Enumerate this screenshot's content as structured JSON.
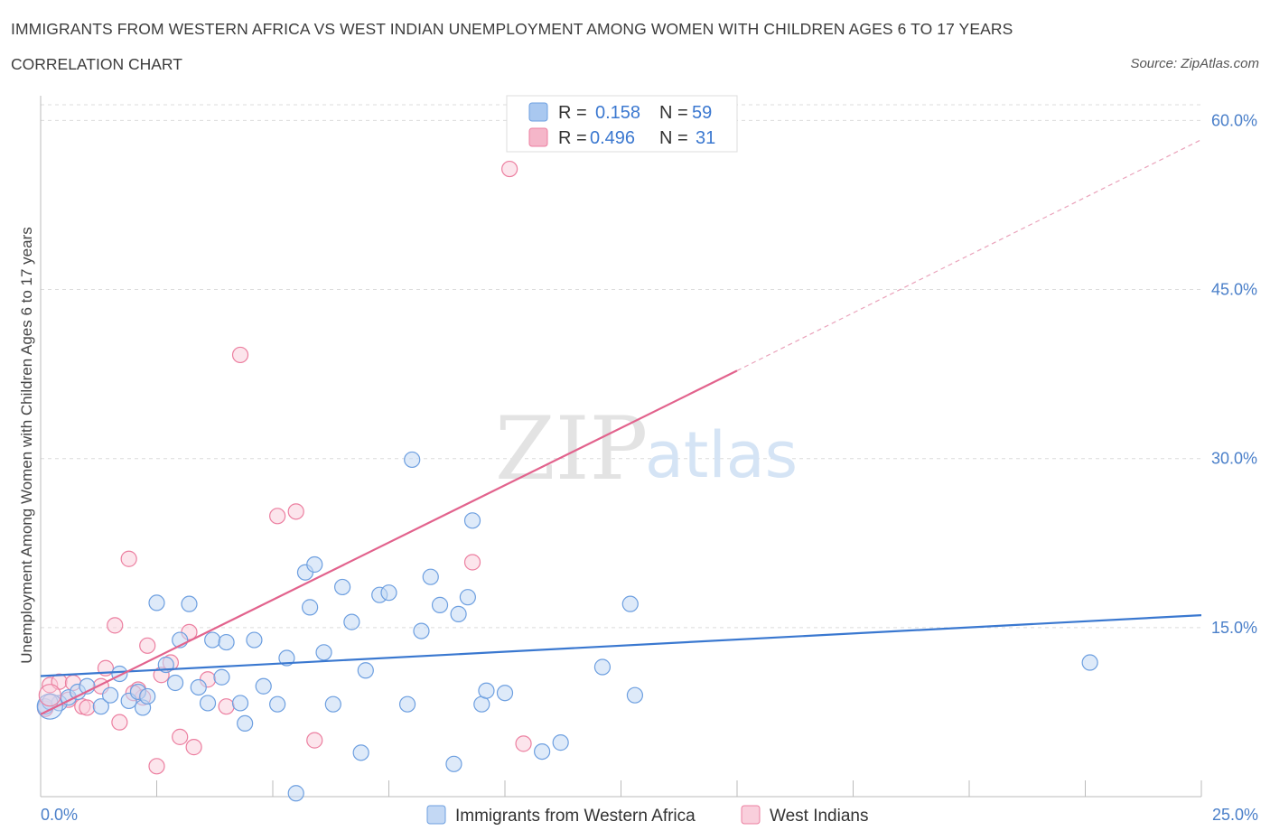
{
  "title": "IMMIGRANTS FROM WESTERN AFRICA VS WEST INDIAN UNEMPLOYMENT AMONG WOMEN WITH CHILDREN AGES 6 TO 17 YEARS",
  "subtitle": "CORRELATION CHART",
  "source": "Source: ZipAtlas.com",
  "watermark": {
    "zip": "ZIP",
    "atlas": "atlas"
  },
  "legend": {
    "rows": [
      {
        "r_label": "R =",
        "r_value": "0.158",
        "n_label": "N =",
        "n_value": "59",
        "color": "#a9c8f0"
      },
      {
        "r_label": "R =",
        "r_value": "0.496",
        "n_label": "N =",
        "n_value": "31",
        "color": "#f5b6c9"
      }
    ]
  },
  "chart_data": {
    "type": "scatter",
    "title": "IMMIGRANTS FROM WESTERN AFRICA VS WEST INDIAN UNEMPLOYMENT AMONG WOMEN WITH CHILDREN AGES 6 TO 17 YEARS",
    "xlabel": "",
    "ylabel": "Unemployment Among Women with Children Ages 6 to 17 years",
    "xlim": [
      0,
      25
    ],
    "ylim": [
      0,
      60
    ],
    "x_tick_labels": [
      "0.0%",
      "25.0%"
    ],
    "y_ticks": [
      15,
      30,
      45,
      60
    ],
    "y_tick_labels": [
      "15.0%",
      "30.0%",
      "45.0%",
      "60.0%"
    ],
    "grid": true,
    "series": [
      {
        "name": "Immigrants from Western Africa",
        "color": "#6d9fe0",
        "fill": "#c3d8f4",
        "trend": {
          "x0": 0,
          "y0": 10.7,
          "x1": 25,
          "y1": 16.1
        },
        "points": [
          [
            0.1,
            8.0
          ],
          [
            0.4,
            8.3
          ],
          [
            0.6,
            8.8
          ],
          [
            0.8,
            9.3
          ],
          [
            1.0,
            9.8
          ],
          [
            1.3,
            8.0
          ],
          [
            1.7,
            10.9
          ],
          [
            1.9,
            8.5
          ],
          [
            2.1,
            9.3
          ],
          [
            2.2,
            7.9
          ],
          [
            2.5,
            17.2
          ],
          [
            2.7,
            11.7
          ],
          [
            2.9,
            10.1
          ],
          [
            3.0,
            13.9
          ],
          [
            3.2,
            17.1
          ],
          [
            3.4,
            9.7
          ],
          [
            3.6,
            8.3
          ],
          [
            3.7,
            13.9
          ],
          [
            3.9,
            10.6
          ],
          [
            4.0,
            13.7
          ],
          [
            4.3,
            8.3
          ],
          [
            4.4,
            6.5
          ],
          [
            4.6,
            13.9
          ],
          [
            4.8,
            9.8
          ],
          [
            5.1,
            8.2
          ],
          [
            5.3,
            12.3
          ],
          [
            5.5,
            0.3
          ],
          [
            5.7,
            19.9
          ],
          [
            5.9,
            20.6
          ],
          [
            6.1,
            12.8
          ],
          [
            6.3,
            8.2
          ],
          [
            6.5,
            18.6
          ],
          [
            6.7,
            15.5
          ],
          [
            6.9,
            3.9
          ],
          [
            7.0,
            11.2
          ],
          [
            7.3,
            17.9
          ],
          [
            7.5,
            18.1
          ],
          [
            7.9,
            8.2
          ],
          [
            8.2,
            14.7
          ],
          [
            8.4,
            19.5
          ],
          [
            8.6,
            17.0
          ],
          [
            8.9,
            2.9
          ],
          [
            9.0,
            16.2
          ],
          [
            9.2,
            17.7
          ],
          [
            9.3,
            24.5
          ],
          [
            9.5,
            8.2
          ],
          [
            9.6,
            9.4
          ],
          [
            10.0,
            9.2
          ],
          [
            10.8,
            4.0
          ],
          [
            11.2,
            4.8
          ],
          [
            12.1,
            11.5
          ],
          [
            12.7,
            17.1
          ],
          [
            12.8,
            9.0
          ],
          [
            5.8,
            16.8
          ],
          [
            8.0,
            29.9
          ],
          [
            22.6,
            11.9
          ],
          [
            0.2,
            8.4
          ],
          [
            1.5,
            9.0
          ],
          [
            2.3,
            8.9
          ]
        ]
      },
      {
        "name": "West Indians",
        "color": "#ec7fa0",
        "fill": "#f9cfdc",
        "trend": {
          "x0": 0,
          "y0": 7.3,
          "x1": 15,
          "y1": 37.8
        },
        "trend_ext": {
          "x0": 15,
          "y0": 37.8,
          "x1": 25,
          "y1": 58.3
        },
        "points": [
          [
            0.1,
            7.8
          ],
          [
            0.2,
            9.9
          ],
          [
            0.4,
            10.2
          ],
          [
            0.6,
            8.6
          ],
          [
            0.7,
            10.1
          ],
          [
            0.9,
            8.0
          ],
          [
            1.0,
            7.9
          ],
          [
            1.3,
            9.8
          ],
          [
            1.4,
            11.4
          ],
          [
            1.6,
            15.2
          ],
          [
            1.7,
            6.6
          ],
          [
            1.9,
            21.1
          ],
          [
            2.1,
            9.5
          ],
          [
            2.2,
            8.8
          ],
          [
            2.3,
            13.4
          ],
          [
            2.5,
            2.7
          ],
          [
            2.6,
            10.8
          ],
          [
            2.8,
            11.9
          ],
          [
            3.0,
            5.3
          ],
          [
            3.2,
            14.6
          ],
          [
            3.3,
            4.4
          ],
          [
            3.6,
            10.4
          ],
          [
            4.0,
            8.0
          ],
          [
            4.3,
            39.2
          ],
          [
            5.1,
            24.9
          ],
          [
            5.5,
            25.3
          ],
          [
            5.9,
            5.0
          ],
          [
            9.3,
            20.8
          ],
          [
            10.1,
            55.7
          ],
          [
            10.4,
            4.7
          ],
          [
            2.0,
            9.2
          ]
        ]
      }
    ]
  }
}
